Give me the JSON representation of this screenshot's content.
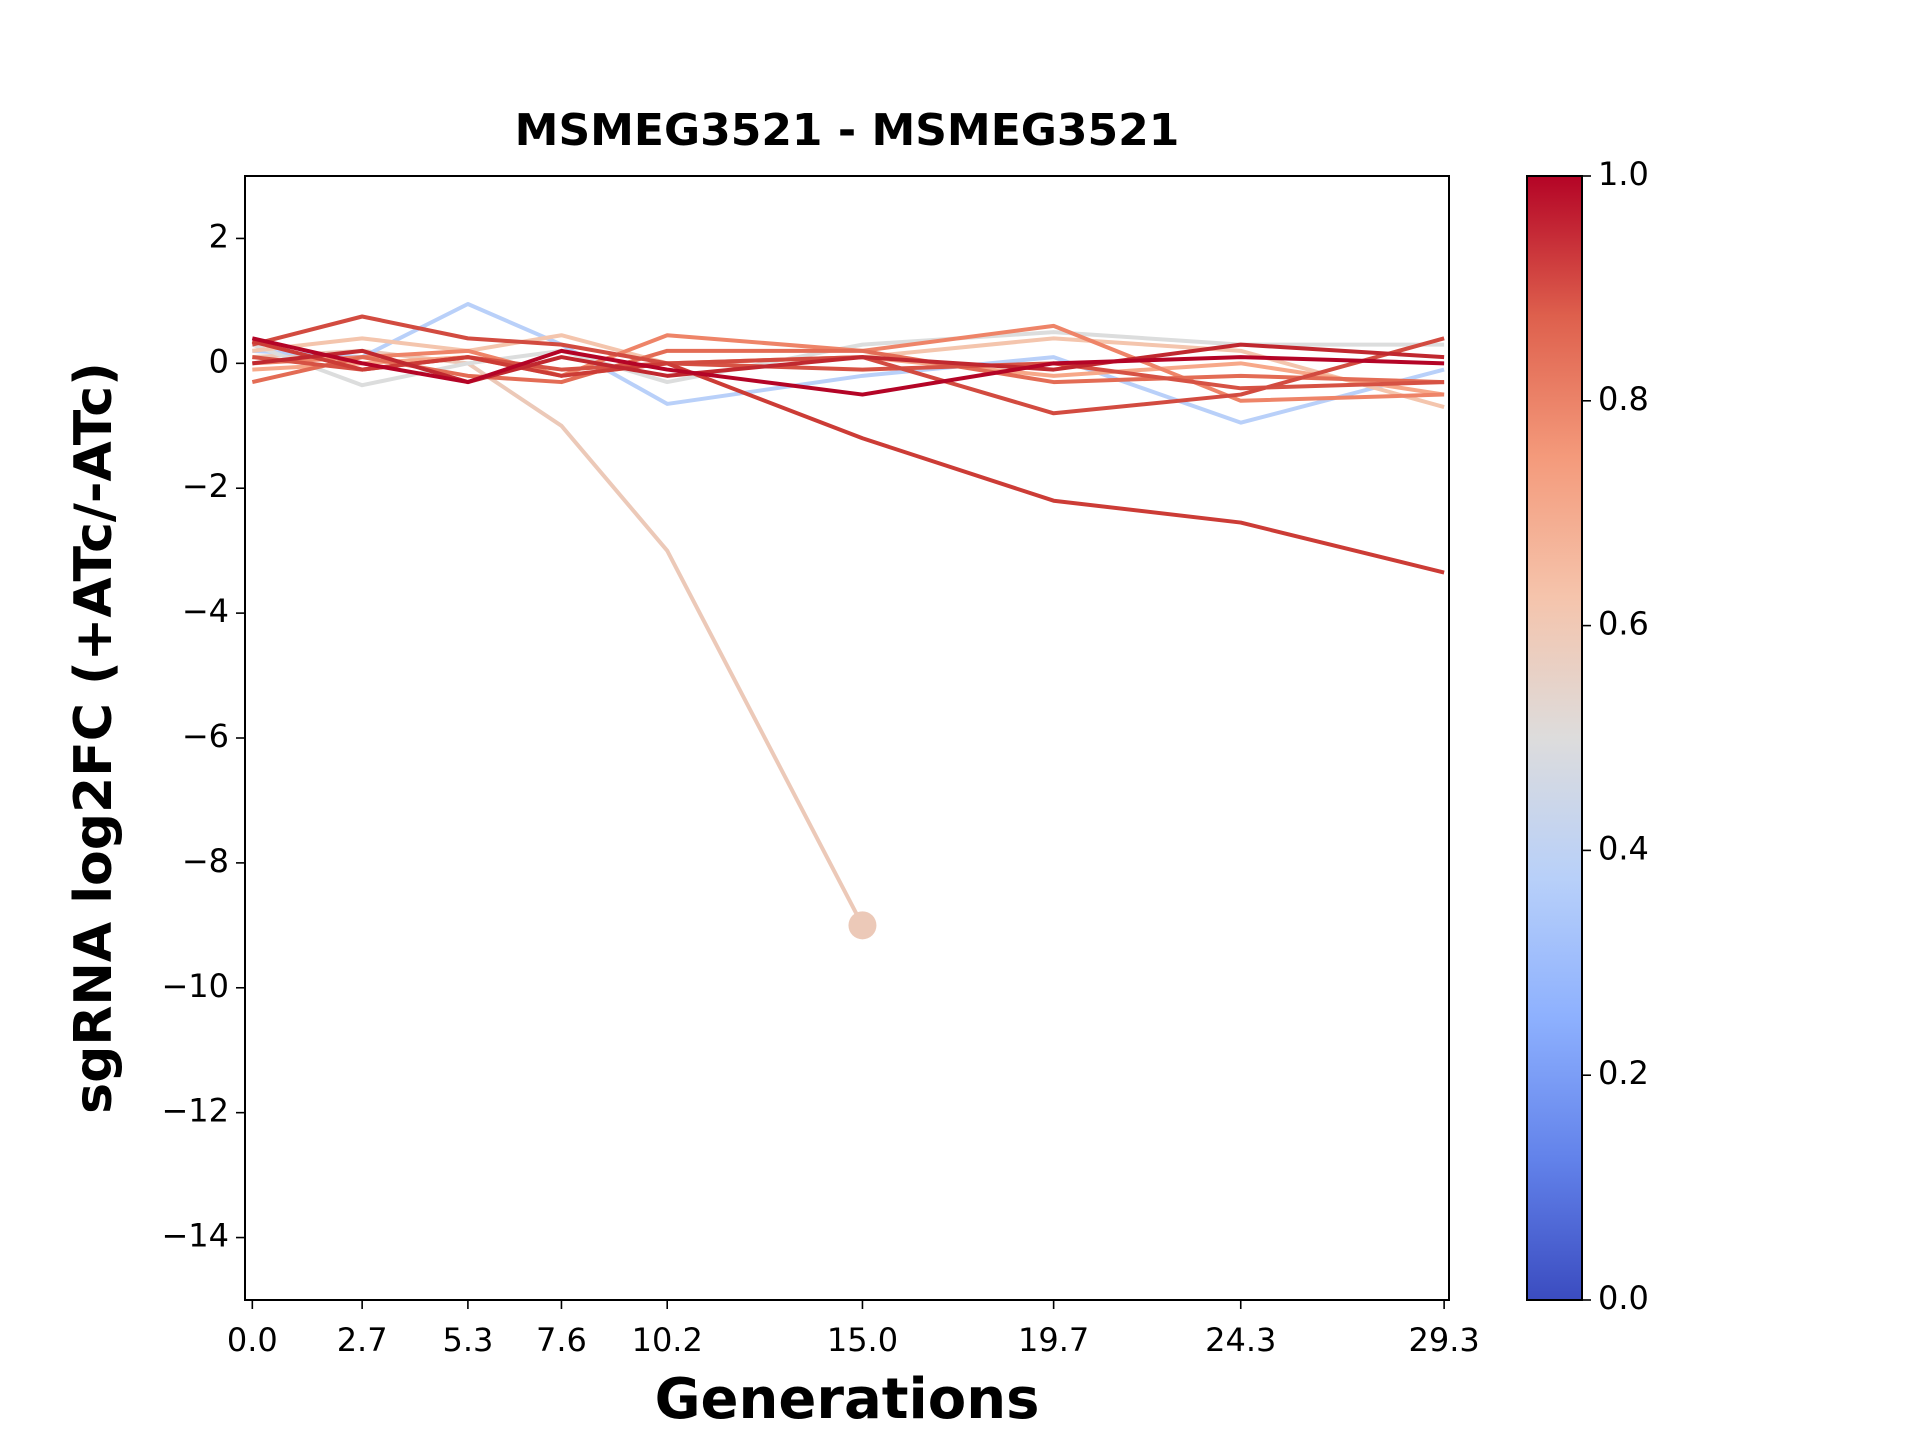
{
  "chart_data": {
    "type": "line",
    "title": "MSMEG3521 - MSMEG3521",
    "xlabel": "Generations",
    "ylabel": "sgRNA log2FC (+ATc/-ATc)",
    "x": [
      0.0,
      2.7,
      5.3,
      7.6,
      10.2,
      15.0,
      19.7,
      24.3,
      29.3
    ],
    "xlim": [
      -0.18,
      29.42
    ],
    "xticks": [
      {
        "value": 0.0,
        "label": "0.0"
      },
      2.7,
      5.3,
      7.6,
      10.2,
      {
        "value": 15.0,
        "label": "15.0"
      },
      19.7,
      24.3,
      29.3
    ],
    "ylim": [
      -15,
      3
    ],
    "yticks": [
      {
        "value": -14,
        "label": "−14"
      },
      {
        "value": -12,
        "label": "−12"
      },
      {
        "value": -10,
        "label": "−10"
      },
      {
        "value": -8,
        "label": "−8"
      },
      {
        "value": -6,
        "label": "−6"
      },
      {
        "value": -4,
        "label": "−4"
      },
      {
        "value": -2,
        "label": "−2"
      },
      0,
      2
    ],
    "grid": false,
    "series": [
      {
        "color": "#ecc9b8",
        "marker": "end",
        "values": [
          0.1,
          0.2,
          0.0,
          -1.0,
          -3.0,
          -9.0,
          null,
          null,
          null
        ]
      },
      {
        "color": "#b9d0f9",
        "values": [
          0.2,
          0.1,
          0.95,
          0.3,
          -0.65,
          -0.2,
          0.1,
          -0.95,
          -0.1
        ]
      },
      {
        "color": "#dcdddd",
        "values": [
          0.3,
          -0.35,
          0.0,
          0.2,
          -0.3,
          0.3,
          0.5,
          0.3,
          0.3
        ]
      },
      {
        "color": "#f4c5ad",
        "values": [
          0.2,
          0.4,
          0.2,
          0.45,
          0.0,
          0.1,
          0.4,
          0.2,
          -0.7
        ]
      },
      {
        "color": "#f7a889",
        "values": [
          -0.1,
          0.0,
          0.1,
          -0.2,
          0.0,
          0.1,
          -0.2,
          0.0,
          -0.5
        ]
      },
      {
        "color": "#ee8468",
        "values": [
          0.0,
          0.1,
          0.2,
          -0.2,
          0.45,
          0.2,
          0.6,
          -0.6,
          -0.5
        ]
      },
      {
        "color": "#e36c55",
        "values": [
          -0.3,
          0.1,
          -0.2,
          -0.3,
          0.2,
          0.2,
          -0.3,
          -0.2,
          -0.3
        ]
      },
      {
        "color": "#d65244",
        "values": [
          0.1,
          -0.1,
          0.1,
          -0.1,
          0.0,
          -0.1,
          0.0,
          -0.4,
          -0.3
        ]
      },
      {
        "color": "#d24b40",
        "values": [
          0.3,
          0.75,
          0.4,
          0.3,
          0.0,
          0.1,
          -0.8,
          -0.5,
          0.4
        ]
      },
      {
        "color": "#cc3c36",
        "values": [
          0.35,
          -0.1,
          0.1,
          -0.2,
          0.0,
          -1.2,
          -2.2,
          -2.55,
          -3.35
        ]
      },
      {
        "color": "#c0282f",
        "values": [
          0.0,
          0.2,
          -0.3,
          0.1,
          -0.2,
          0.1,
          -0.1,
          0.3,
          0.1
        ]
      },
      {
        "color": "#b40426",
        "values": [
          0.4,
          0.0,
          -0.3,
          0.2,
          -0.1,
          -0.5,
          0.0,
          0.1,
          0.0
        ]
      }
    ],
    "colorbar": {
      "colormap": "coolwarm",
      "lim": [
        0,
        1
      ],
      "ticks": [
        {
          "value": 0,
          "label": "0.0"
        },
        0.2,
        0.4,
        0.6,
        0.8,
        {
          "value": 1,
          "label": "1.0"
        }
      ]
    }
  }
}
